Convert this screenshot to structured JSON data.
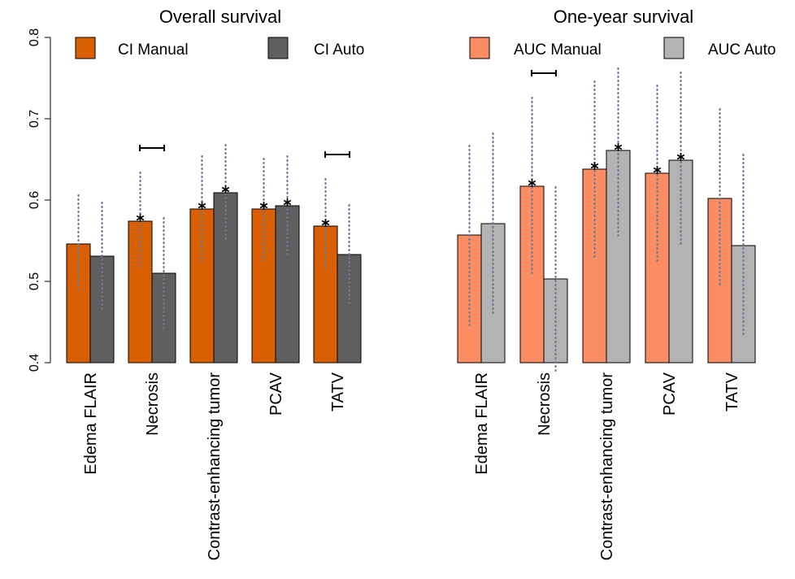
{
  "chart_data": [
    {
      "type": "bar",
      "title": "Overall survival",
      "categories": [
        "Edema FLAIR",
        "Necrosis",
        "Contrast-enhancing tumor",
        "PCAV",
        "TATV"
      ],
      "ylim": [
        0.4,
        0.8
      ],
      "yticks": [
        "0.4",
        "0.5",
        "0.6",
        "0.7",
        "0.8"
      ],
      "series": [
        {
          "name": "CI Manual",
          "color": "#D95F02",
          "values": [
            0.546,
            0.574,
            0.589,
            0.589,
            0.568
          ],
          "ci_low": [
            0.486,
            0.514,
            0.523,
            0.525,
            0.511
          ],
          "ci_high": [
            0.606,
            0.634,
            0.654,
            0.651,
            0.626
          ],
          "star": [
            false,
            true,
            true,
            true,
            true
          ]
        },
        {
          "name": "CI Auto",
          "color": "#5F5F5F",
          "values": [
            0.531,
            0.51,
            0.609,
            0.593,
            0.533
          ],
          "ci_low": [
            0.465,
            0.441,
            0.55,
            0.531,
            0.473
          ],
          "ci_high": [
            0.597,
            0.578,
            0.668,
            0.654,
            0.594
          ],
          "star": [
            false,
            false,
            true,
            true,
            false
          ]
        }
      ],
      "significance": [
        "Necrosis",
        "TATV"
      ],
      "legend": "top"
    },
    {
      "type": "bar",
      "title": "One-year survival",
      "categories": [
        "Edema FLAIR",
        "Necrosis",
        "Contrast-enhancing tumor",
        "PCAV",
        "TATV"
      ],
      "ylim": [
        0.4,
        0.8
      ],
      "series": [
        {
          "name": "AUC Manual",
          "color": "#FC8D62",
          "values": [
            0.557,
            0.617,
            0.638,
            0.633,
            0.602
          ],
          "ci_low": [
            0.443,
            0.508,
            0.53,
            0.525,
            0.492
          ],
          "ci_high": [
            0.667,
            0.726,
            0.746,
            0.741,
            0.712
          ],
          "star": [
            false,
            true,
            true,
            true,
            false
          ]
        },
        {
          "name": "AUC Auto",
          "color": "#B3B3B3",
          "values": [
            0.571,
            0.503,
            0.661,
            0.649,
            0.544
          ],
          "ci_low": [
            0.461,
            0.39,
            0.555,
            0.543,
            0.432
          ],
          "ci_high": [
            0.682,
            0.616,
            0.762,
            0.757,
            0.656
          ],
          "star": [
            false,
            false,
            true,
            true,
            false
          ]
        }
      ],
      "significance": [
        "Necrosis"
      ],
      "legend": "top"
    }
  ]
}
